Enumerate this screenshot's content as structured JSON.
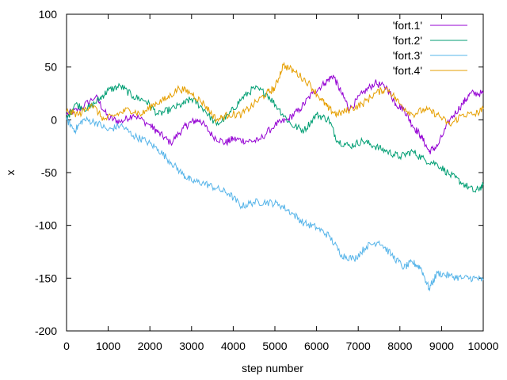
{
  "chart_data": {
    "type": "line",
    "title": "",
    "xlabel": "step number",
    "ylabel": "x",
    "xlim": [
      0,
      10000
    ],
    "ylim": [
      -200,
      100
    ],
    "x_ticks": [
      0,
      1000,
      2000,
      3000,
      4000,
      5000,
      6000,
      7000,
      8000,
      9000,
      10000
    ],
    "y_ticks": [
      -200,
      -150,
      -100,
      -50,
      0,
      50,
      100
    ],
    "grid": false,
    "legend_position": "top-right",
    "series": [
      {
        "name": "'fort.1'",
        "color": "#9400d3",
        "x": [
          0,
          300,
          700,
          1000,
          1300,
          1600,
          2000,
          2200,
          2500,
          2800,
          3000,
          3200,
          3500,
          3800,
          4000,
          4300,
          4600,
          5000,
          5300,
          5600,
          5900,
          6200,
          6400,
          6600,
          6800,
          7100,
          7400,
          7700,
          7900,
          8100,
          8300,
          8500,
          8700,
          8900,
          9200,
          9500,
          9700,
          10000
        ],
        "y": [
          5,
          10,
          22,
          2,
          -2,
          5,
          -5,
          -12,
          -22,
          -8,
          -2,
          0,
          -15,
          -22,
          -18,
          -20,
          -20,
          -5,
          0,
          10,
          25,
          35,
          42,
          25,
          10,
          25,
          35,
          30,
          15,
          10,
          -5,
          -15,
          -30,
          -25,
          0,
          15,
          25,
          25
        ]
      },
      {
        "name": "'fort.2'",
        "color": "#009e73",
        "x": [
          0,
          200,
          500,
          800,
          1000,
          1300,
          1600,
          1900,
          2200,
          2500,
          2800,
          3000,
          3300,
          3600,
          3900,
          4200,
          4500,
          4800,
          5100,
          5400,
          5700,
          6000,
          6300,
          6500,
          6800,
          7100,
          7400,
          7700,
          8000,
          8300,
          8600,
          8900,
          9200,
          9500,
          9800,
          10000
        ],
        "y": [
          0,
          15,
          10,
          20,
          28,
          32,
          22,
          18,
          5,
          10,
          15,
          20,
          10,
          -5,
          5,
          20,
          30,
          25,
          10,
          -5,
          -10,
          5,
          0,
          -20,
          -25,
          -20,
          -25,
          -30,
          -35,
          -30,
          -38,
          -42,
          -52,
          -60,
          -68,
          -62
        ]
      },
      {
        "name": "'fort.3'",
        "color": "#56b4e9",
        "x": [
          0,
          200,
          400,
          700,
          1000,
          1300,
          1600,
          1900,
          2200,
          2500,
          2800,
          3000,
          3300,
          3600,
          3900,
          4200,
          4500,
          4800,
          5100,
          5400,
          5700,
          6000,
          6300,
          6600,
          6900,
          7200,
          7500,
          7800,
          8100,
          8300,
          8500,
          8700,
          8900,
          9200,
          9500,
          9800,
          10000
        ],
        "y": [
          0,
          -10,
          0,
          -2,
          -10,
          -5,
          -15,
          -20,
          -28,
          -40,
          -52,
          -58,
          -60,
          -65,
          -70,
          -82,
          -78,
          -78,
          -80,
          -88,
          -98,
          -102,
          -110,
          -128,
          -132,
          -120,
          -115,
          -128,
          -140,
          -135,
          -140,
          -160,
          -145,
          -148,
          -150,
          -150,
          -152
        ]
      },
      {
        "name": "'fort.4'",
        "color": "#e69f00",
        "x": [
          0,
          300,
          600,
          900,
          1200,
          1500,
          1800,
          2100,
          2400,
          2700,
          3000,
          3300,
          3600,
          3900,
          4200,
          4500,
          4800,
          5000,
          5200,
          5500,
          5800,
          6100,
          6300,
          6500,
          6800,
          7100,
          7400,
          7700,
          8000,
          8300,
          8600,
          8900,
          9200,
          9500,
          9800,
          10000
        ],
        "y": [
          8,
          5,
          15,
          0,
          5,
          10,
          5,
          15,
          20,
          30,
          25,
          15,
          0,
          5,
          5,
          15,
          25,
          30,
          52,
          45,
          35,
          20,
          10,
          5,
          10,
          15,
          25,
          30,
          15,
          5,
          10,
          5,
          -5,
          5,
          5,
          10
        ]
      }
    ]
  }
}
